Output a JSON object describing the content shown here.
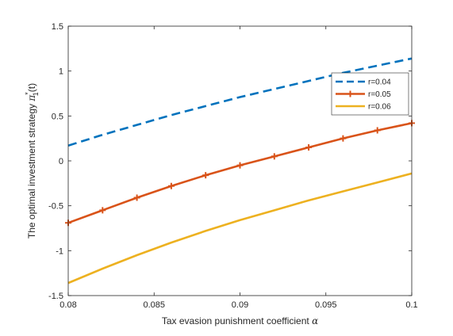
{
  "chart_data": {
    "type": "line",
    "xlabel": {
      "text": "Tax evasion punishment coefficient",
      "symbol": "α"
    },
    "ylabel": {
      "text": "The optimal investment strategy",
      "symbol": "π",
      "superscript": "*",
      "subscript": "1",
      "suffix": "(t)"
    },
    "xlim": [
      0.08,
      0.1
    ],
    "ylim": [
      -1.5,
      1.5
    ],
    "x_ticks": [
      0.08,
      0.085,
      0.09,
      0.095,
      0.1
    ],
    "x_tick_labels": [
      "0.08",
      "0.085",
      "0.09",
      "0.095",
      "0.1"
    ],
    "y_ticks": [
      -1.5,
      -1,
      -0.5,
      0,
      0.5,
      1,
      1.5
    ],
    "y_tick_labels": [
      "-1.5",
      "-1",
      "-0.5",
      "0",
      "0.5",
      "1",
      "1.5"
    ],
    "grid": false,
    "legend_position": "right-upper",
    "x": [
      0.08,
      0.082,
      0.084,
      0.086,
      0.088,
      0.09,
      0.092,
      0.094,
      0.096,
      0.098,
      0.1
    ],
    "series": [
      {
        "name": "r=0.04",
        "color": "#0072BD",
        "style": "dashed",
        "marker": "none",
        "values": [
          0.17,
          0.29,
          0.4,
          0.51,
          0.61,
          0.71,
          0.8,
          0.89,
          0.98,
          1.06,
          1.14
        ]
      },
      {
        "name": "r=0.05",
        "color": "#D95319",
        "style": "solid",
        "marker": "plus",
        "values": [
          -0.69,
          -0.55,
          -0.41,
          -0.28,
          -0.16,
          -0.05,
          0.05,
          0.15,
          0.25,
          0.34,
          0.42
        ]
      },
      {
        "name": "r=0.06",
        "color": "#EDB120",
        "style": "solid",
        "marker": "none",
        "values": [
          -1.36,
          -1.2,
          -1.05,
          -0.91,
          -0.78,
          -0.66,
          -0.55,
          -0.44,
          -0.34,
          -0.24,
          -0.14
        ]
      }
    ]
  }
}
